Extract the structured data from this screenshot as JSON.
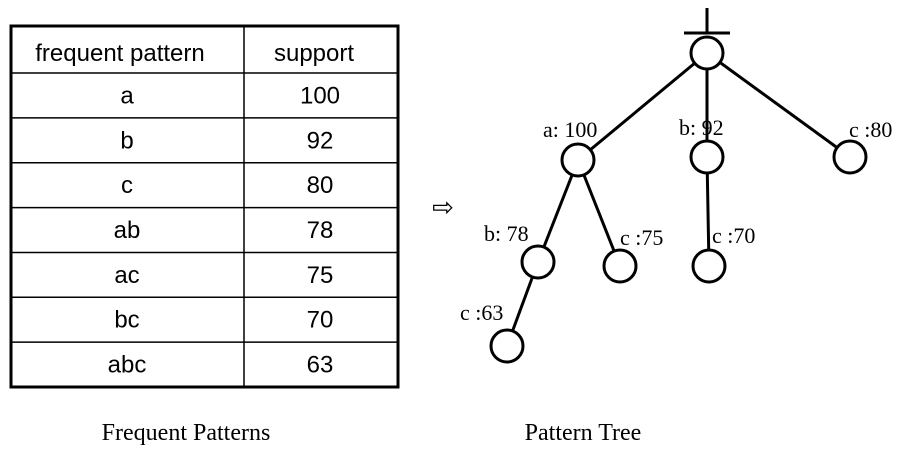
{
  "table": {
    "headers": [
      "frequent pattern",
      "support"
    ],
    "rows": [
      {
        "pattern": "a",
        "support": "100"
      },
      {
        "pattern": "b",
        "support": "92"
      },
      {
        "pattern": "c",
        "support": "80"
      },
      {
        "pattern": "ab",
        "support": "78"
      },
      {
        "pattern": "ac",
        "support": "75"
      },
      {
        "pattern": "bc",
        "support": "70"
      },
      {
        "pattern": "abc",
        "support": "63"
      }
    ]
  },
  "arrow": "⇨",
  "tree": {
    "nodes": [
      {
        "id": "root",
        "label": ""
      },
      {
        "id": "a",
        "label": "a: 100"
      },
      {
        "id": "b",
        "label": "b: 92"
      },
      {
        "id": "c",
        "label": "c :80"
      },
      {
        "id": "ab",
        "label": "b: 78"
      },
      {
        "id": "ac",
        "label": "c :75"
      },
      {
        "id": "bc",
        "label": "c :70"
      },
      {
        "id": "abc",
        "label": "c :63"
      }
    ],
    "edges": [
      [
        "root",
        "a"
      ],
      [
        "root",
        "b"
      ],
      [
        "root",
        "c"
      ],
      [
        "a",
        "ab"
      ],
      [
        "a",
        "ac"
      ],
      [
        "b",
        "bc"
      ],
      [
        "ab",
        "abc"
      ]
    ]
  },
  "captions": {
    "left": "Frequent Patterns",
    "right": "Pattern Tree"
  }
}
